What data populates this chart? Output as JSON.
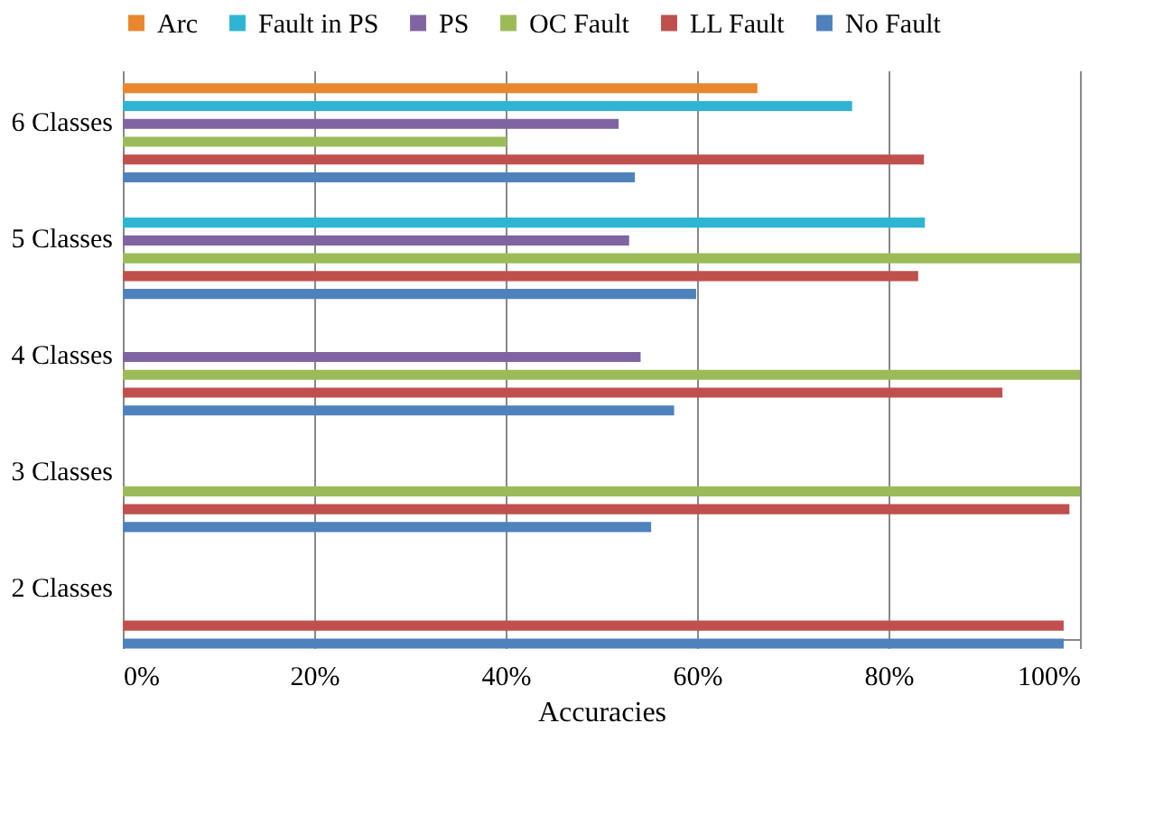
{
  "chart_data": {
    "type": "bar",
    "orientation": "horizontal",
    "xlabel": "Accuracies",
    "categories": [
      "6 Classes",
      "5 Classes",
      "4 Classes",
      "3 Classes",
      "2 Classes"
    ],
    "series": [
      {
        "name": "Arc",
        "color": "#e8872e",
        "values": [
          66.3,
          null,
          null,
          null,
          null
        ]
      },
      {
        "name": "Fault in PS",
        "color": "#2fb5d4",
        "values": [
          76.2,
          83.8,
          null,
          null,
          null
        ]
      },
      {
        "name": "PS",
        "color": "#8064a2",
        "values": [
          51.8,
          52.9,
          54.1,
          null,
          null
        ]
      },
      {
        "name": "OC Fault",
        "color": "#9bbb59",
        "values": [
          40.1,
          100,
          100,
          100,
          null
        ]
      },
      {
        "name": "LL Fault",
        "color": "#c0504d",
        "values": [
          83.7,
          83.1,
          91.9,
          98.9,
          98.3
        ]
      },
      {
        "name": "No Fault",
        "color": "#4f81bd",
        "values": [
          53.5,
          59.9,
          57.6,
          55.2,
          98.3
        ]
      }
    ],
    "xlim": [
      0,
      100
    ],
    "xticks": [
      {
        "value": 0,
        "label": "0%"
      },
      {
        "value": 20,
        "label": "20%"
      },
      {
        "value": 40,
        "label": "40%"
      },
      {
        "value": 60,
        "label": "60%"
      },
      {
        "value": 80,
        "label": "80%"
      },
      {
        "value": 100,
        "label": "100%"
      }
    ],
    "grid": "x",
    "legend": "top"
  }
}
